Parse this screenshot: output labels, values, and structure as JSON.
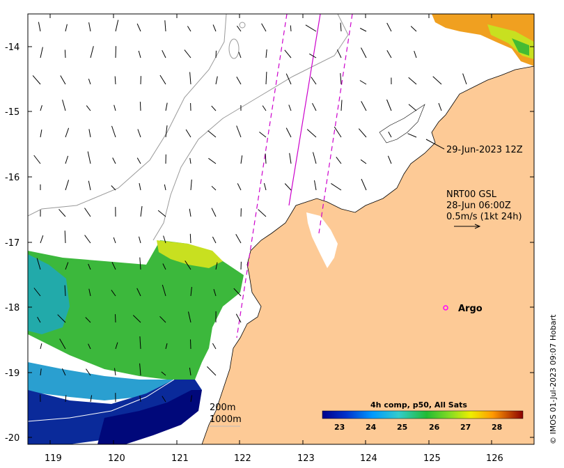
{
  "map": {
    "lat_ticks": [
      "-14",
      "-15",
      "-16",
      "-17",
      "-18",
      "-19",
      "-20"
    ],
    "lon_ticks": [
      "119",
      "120",
      "121",
      "122",
      "123",
      "124",
      "125",
      "126"
    ],
    "annotation_time": "29-Jun-2023 12Z",
    "vector_source": "NRT00 GSL",
    "vector_time": "28-Jun 06:00Z",
    "vector_scale": "0.5m/s (1kt 24h)",
    "argo_label": "Argo",
    "contour_200": "200m",
    "contour_1000": "1000m",
    "colorbar_title": "4h comp, p50, All Sats",
    "colorbar_ticks": [
      "23",
      "24",
      "25",
      "26",
      "27",
      "28"
    ],
    "credit": "© IMOS 01-Jul-2023 09:07 Hobart"
  },
  "colors": {
    "land": "#fdca96",
    "argo": "#ff00ff",
    "track": "#cc00cc"
  }
}
